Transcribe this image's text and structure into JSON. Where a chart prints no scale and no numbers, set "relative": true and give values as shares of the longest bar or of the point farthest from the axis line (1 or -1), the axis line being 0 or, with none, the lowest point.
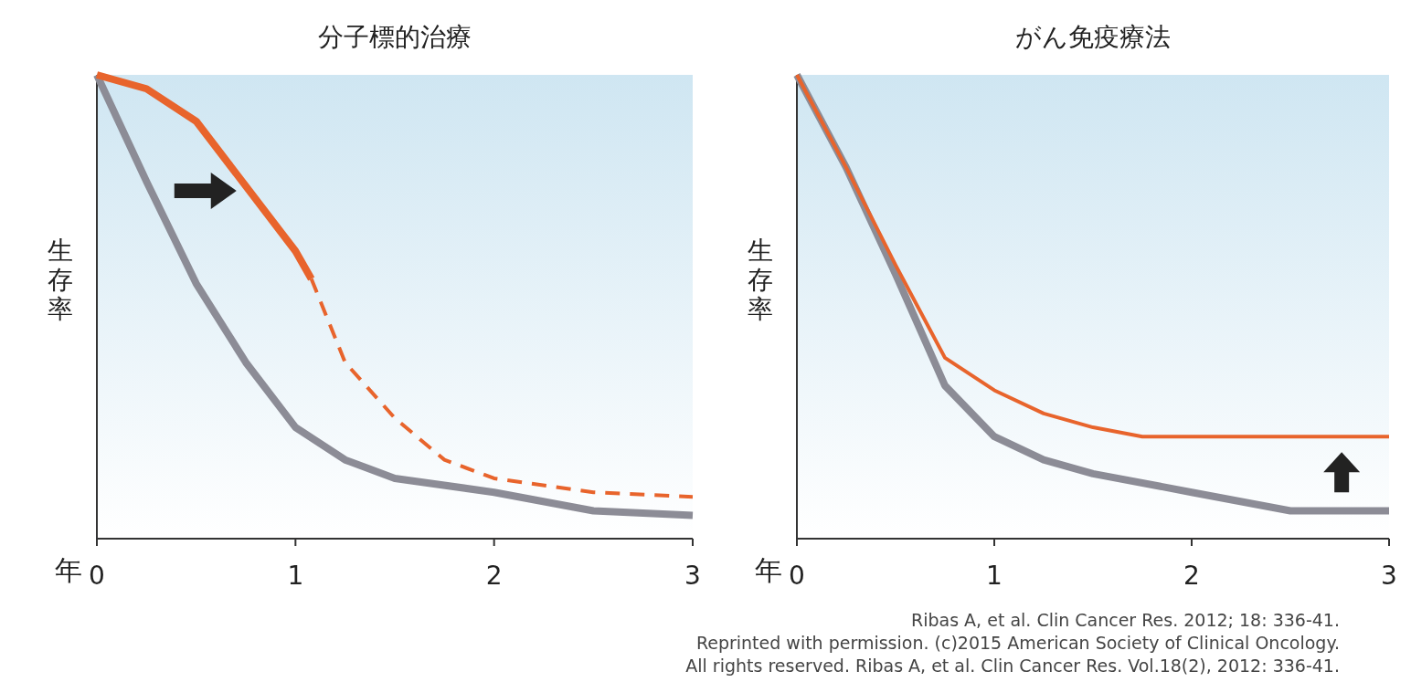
{
  "chart_data": [
    {
      "type": "line",
      "title": "分子標的治療",
      "xlabel": "年",
      "ylabel": "生存率",
      "relative": true,
      "xlim": [
        0,
        3
      ],
      "xticks": [
        0,
        1,
        2,
        3
      ],
      "series": [
        {
          "color": "#8c8c96",
          "x": [
            0,
            0.25,
            0.5,
            0.75,
            1,
            1.25,
            1.5,
            2,
            2.5,
            3
          ],
          "values": [
            1,
            0.77,
            0.55,
            0.38,
            0.24,
            0.17,
            0.13,
            0.1,
            0.06,
            0.05
          ]
        },
        {
          "color": "#e8642c",
          "x": [
            0,
            0.25,
            0.5,
            0.75,
            1,
            1.08
          ],
          "values": [
            1,
            0.97,
            0.9,
            0.76,
            0.62,
            0.56
          ]
        },
        {
          "color": "#e8642c",
          "line_style": "dashed",
          "x": [
            1.08,
            1.25,
            1.5,
            1.75,
            2,
            2.5,
            3
          ],
          "values": [
            0.56,
            0.38,
            0.26,
            0.17,
            0.13,
            0.1,
            0.09
          ]
        }
      ]
    },
    {
      "type": "line",
      "title": "がん免疫療法",
      "xlabel": "年",
      "ylabel": "生存率",
      "relative": true,
      "xlim": [
        0,
        3
      ],
      "xticks": [
        0,
        1,
        2,
        3
      ],
      "series": [
        {
          "color": "#8c8c96",
          "x": [
            0,
            0.25,
            0.5,
            0.75,
            1,
            1.25,
            1.5,
            2,
            2.5,
            3
          ],
          "values": [
            1,
            0.8,
            0.57,
            0.33,
            0.22,
            0.17,
            0.14,
            0.1,
            0.06,
            0.06
          ]
        },
        {
          "color": "#e8642c",
          "x": [
            0,
            0.25,
            0.5,
            0.75,
            1,
            1.25,
            1.5,
            1.75,
            2,
            2.5,
            3
          ],
          "values": [
            1,
            0.8,
            0.59,
            0.39,
            0.32,
            0.27,
            0.24,
            0.22,
            0.22,
            0.22,
            0.22
          ]
        }
      ],
      "annotations": [
        "Ribas A, et al. Clin Cancer Res. 2012; 18: 336-41.",
        "Reprinted with permission. (c)2015 American Society of Clinical Oncology.",
        "All rights reserved. Ribas A, et al. Clin Cancer Res. Vol.18(2), 2012: 336-41."
      ]
    }
  ]
}
